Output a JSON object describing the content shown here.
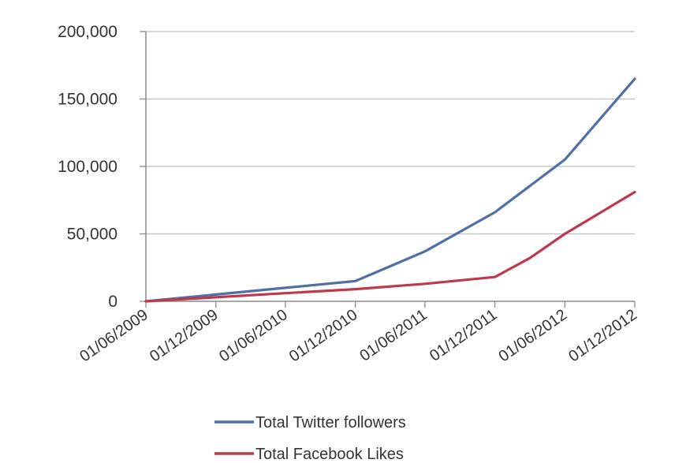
{
  "chart_data": {
    "type": "line",
    "title": "",
    "xlabel": "",
    "ylabel": "",
    "ylim": [
      0,
      200000
    ],
    "y_ticks": [
      0,
      50000,
      100000,
      150000,
      200000
    ],
    "y_tick_labels": [
      "0",
      "50,000",
      "100,000",
      "150,000",
      "200,000"
    ],
    "x_tick_labels": [
      "01/06/2009",
      "01/12/2009",
      "01/06/2010",
      "01/12/2010",
      "01/06/2011",
      "01/12/2011",
      "01/06/2012",
      "01/12/2012"
    ],
    "xlim": [
      "01/06/2009",
      "01/12/2012"
    ],
    "grid": "horizontal",
    "legend_position": "bottom",
    "series": [
      {
        "name": "Total Twitter followers",
        "color": "#4F6FA8",
        "points": [
          {
            "x": "01/06/2009",
            "y": 0
          },
          {
            "x": "01/12/2009",
            "y": 5000
          },
          {
            "x": "01/06/2010",
            "y": 10000
          },
          {
            "x": "01/12/2010",
            "y": 15000
          },
          {
            "x": "01/06/2011",
            "y": 37000
          },
          {
            "x": "01/12/2011",
            "y": 66000
          },
          {
            "x": "01/06/2012",
            "y": 105000
          },
          {
            "x": "01/12/2012",
            "y": 165000
          }
        ]
      },
      {
        "name": "Total  Facebook Likes",
        "color": "#C0384B",
        "points": [
          {
            "x": "01/06/2009",
            "y": 0
          },
          {
            "x": "01/12/2009",
            "y": 3000
          },
          {
            "x": "01/06/2010",
            "y": 6000
          },
          {
            "x": "01/12/2010",
            "y": 9000
          },
          {
            "x": "01/06/2011",
            "y": 13000
          },
          {
            "x": "01/12/2011",
            "y": 18000
          },
          {
            "x": "01/03/2012",
            "y": 32000
          },
          {
            "x": "01/06/2012",
            "y": 50000
          },
          {
            "x": "01/12/2012",
            "y": 81000
          }
        ]
      }
    ]
  },
  "colors": {
    "grid": "#BFBFBF",
    "axis": "#8C8C8C",
    "text": "#333333"
  }
}
